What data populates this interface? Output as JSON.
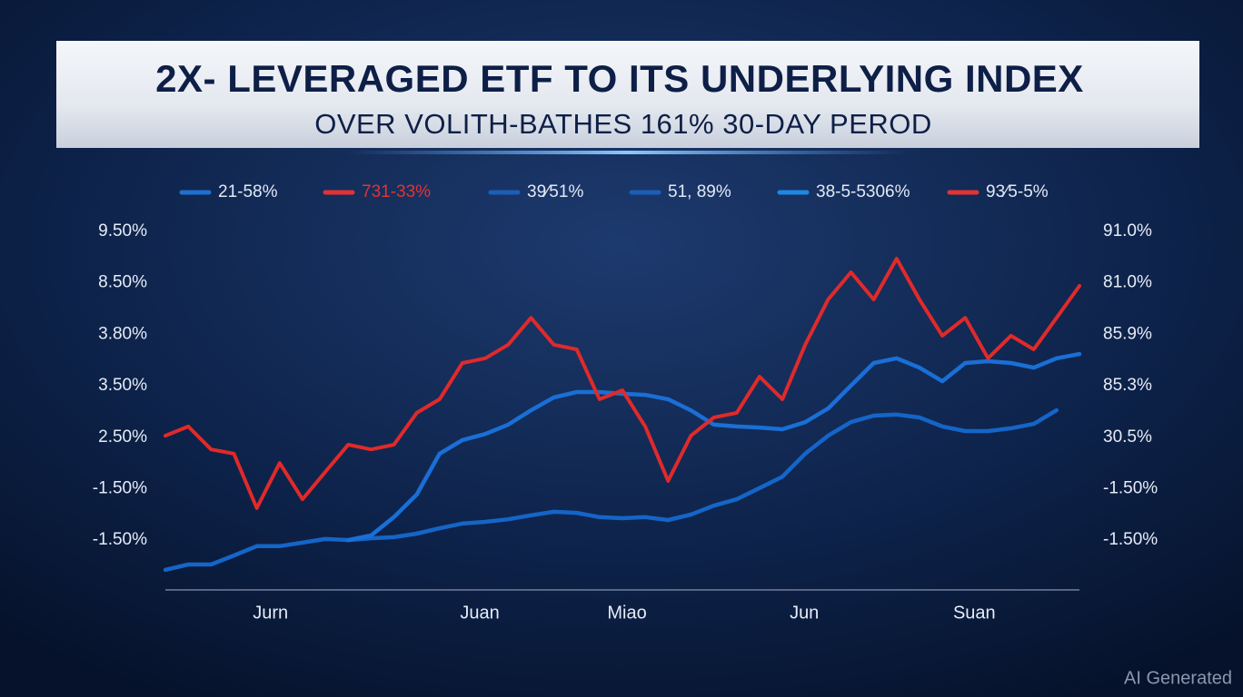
{
  "chart_data": {
    "type": "line",
    "title": "2X- LEVERAGED ETF TO ITS UNDERLYING INDEX",
    "subtitle": "OVER VOLITH-BATHES 161% 30-DAY PEROD",
    "legend": [
      {
        "label": "21-58%",
        "color": "#1f6fd1"
      },
      {
        "label": "731-33%",
        "color": "#e53232"
      },
      {
        "label": "39⁄51%",
        "color": "#1a5fb8"
      },
      {
        "label": "51, 89%",
        "color": "#1a5fb8"
      },
      {
        "label": "38-5-5306%",
        "color": "#1e88e5"
      },
      {
        "label": "93⁄5-5%",
        "color": "#e53232"
      }
    ],
    "y_labels": [
      "9.50%",
      "8.50%",
      "3.80%",
      "3.50%",
      "2.50%",
      "-1.50%",
      "-1.50%"
    ],
    "y2_labels": [
      "91.0%",
      "81.0%",
      "85.9%",
      "85.3%",
      "30.5%",
      "-1.50%",
      "-1.50%"
    ],
    "xlim": [
      0,
      100
    ],
    "xticks": [
      {
        "value": 11.5,
        "label": "Jurn"
      },
      {
        "value": 34.4,
        "label": "Juan"
      },
      {
        "value": 50.5,
        "label": "Miao"
      },
      {
        "value": 69.9,
        "label": "Jun"
      },
      {
        "value": 88.5,
        "label": "Suan"
      }
    ],
    "ylim": [
      0,
      100
    ],
    "x": [
      0,
      2.5,
      5,
      7.5,
      10,
      12.5,
      15,
      17.5,
      20,
      22.5,
      25,
      27.5,
      30,
      32.5,
      35,
      37.5,
      40,
      42.5,
      45,
      47.5,
      50,
      52.5,
      55,
      57.5,
      60,
      62.5,
      65,
      67.5,
      70,
      72.5,
      75,
      77.5,
      80,
      82.5,
      85,
      87.5,
      90,
      92.5,
      95,
      97.5,
      100
    ],
    "series": [
      {
        "color": "#1565c8",
        "values": [
          5.6,
          7.1,
          7.1,
          9.6,
          12.2,
          12.2,
          13.2,
          14.2,
          13.9,
          14.4,
          14.7,
          15.7,
          17.2,
          18.5,
          19.0,
          19.7,
          20.8,
          21.8,
          21.5,
          20.3,
          20.0,
          20.3,
          19.5,
          21.0,
          23.5,
          25.3,
          28.4,
          31.6,
          38.0,
          43.0,
          46.8,
          48.6,
          48.9,
          48.1,
          45.6,
          44.3,
          44.3,
          45.1,
          46.3,
          50.1,
          null
        ]
      },
      {
        "color": "#1a6fd6",
        "values": [
          null,
          null,
          null,
          null,
          null,
          null,
          null,
          null,
          13.9,
          15.2,
          20.3,
          26.6,
          38.0,
          41.8,
          43.5,
          46.1,
          50.1,
          53.7,
          55.2,
          55.2,
          54.7,
          54.4,
          53.2,
          50.1,
          46.1,
          45.6,
          45.3,
          44.8,
          46.8,
          50.6,
          57.0,
          63.3,
          64.6,
          62.0,
          58.2,
          63.3,
          63.8,
          63.3,
          62.0,
          64.6,
          65.8
        ]
      },
      {
        "color": "#e02a2a",
        "values": [
          43.0,
          45.6,
          39.2,
          38.0,
          22.8,
          35.4,
          25.3,
          32.9,
          40.5,
          39.2,
          40.5,
          49.4,
          53.2,
          63.3,
          64.6,
          68.4,
          75.9,
          68.4,
          67.1,
          53.2,
          55.7,
          45.6,
          30.4,
          43.0,
          48.1,
          49.4,
          59.5,
          53.2,
          68.4,
          81.0,
          88.6,
          81.0,
          92.4,
          81.0,
          70.9,
          75.9,
          64.6,
          70.9,
          67.1,
          75.9,
          84.8
        ]
      }
    ]
  },
  "watermark": "AI Generated"
}
